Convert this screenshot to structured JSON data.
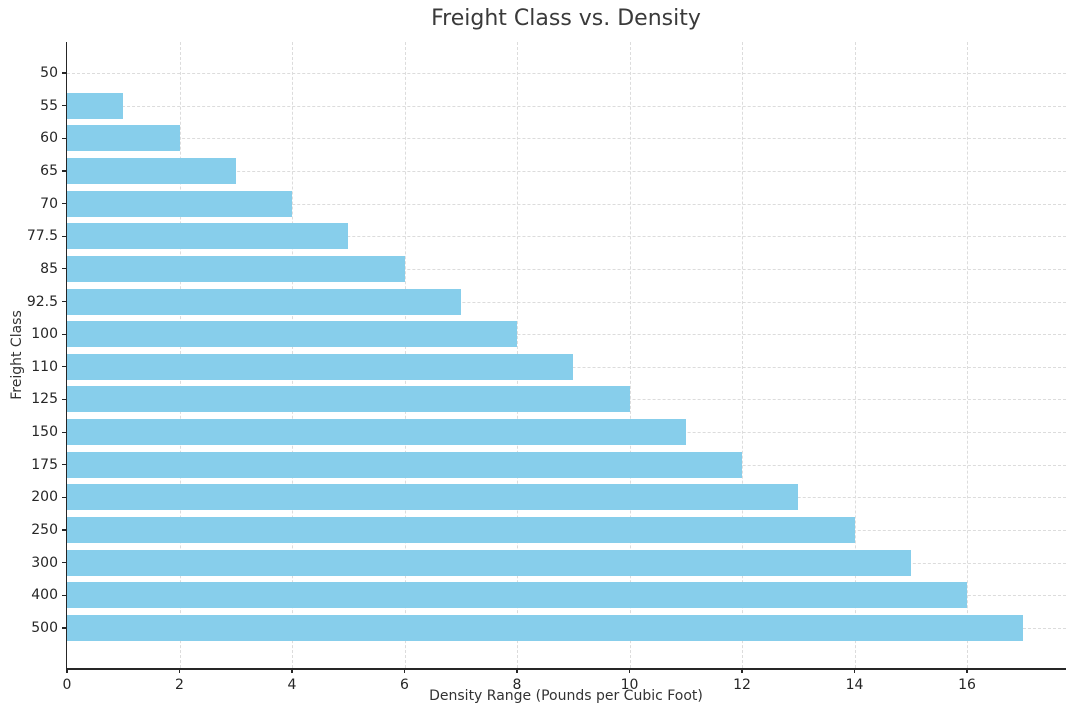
{
  "chart_data": {
    "type": "bar",
    "orientation": "horizontal",
    "title": "Freight Class vs. Density",
    "xlabel": "Density Range (Pounds per Cubic Foot)",
    "ylabel": "Freight Class",
    "categories": [
      "50",
      "55",
      "60",
      "65",
      "70",
      "77.5",
      "85",
      "92.5",
      "100",
      "110",
      "125",
      "150",
      "175",
      "200",
      "250",
      "300",
      "400",
      "500"
    ],
    "values": [
      0,
      1,
      2,
      3,
      4,
      5,
      6,
      7,
      8,
      9,
      10,
      11,
      12,
      13,
      14,
      15,
      16,
      17
    ],
    "xticks": [
      0,
      2,
      4,
      6,
      8,
      10,
      12,
      14,
      16
    ],
    "xlim": [
      0,
      17.76
    ],
    "grid": true,
    "grid_style": "dashed",
    "legend": "none",
    "bar_color": "#87CEEB",
    "grid_color": "#dcdcdc",
    "axis_color": "#262626",
    "title_color": "#3a3a3a"
  }
}
